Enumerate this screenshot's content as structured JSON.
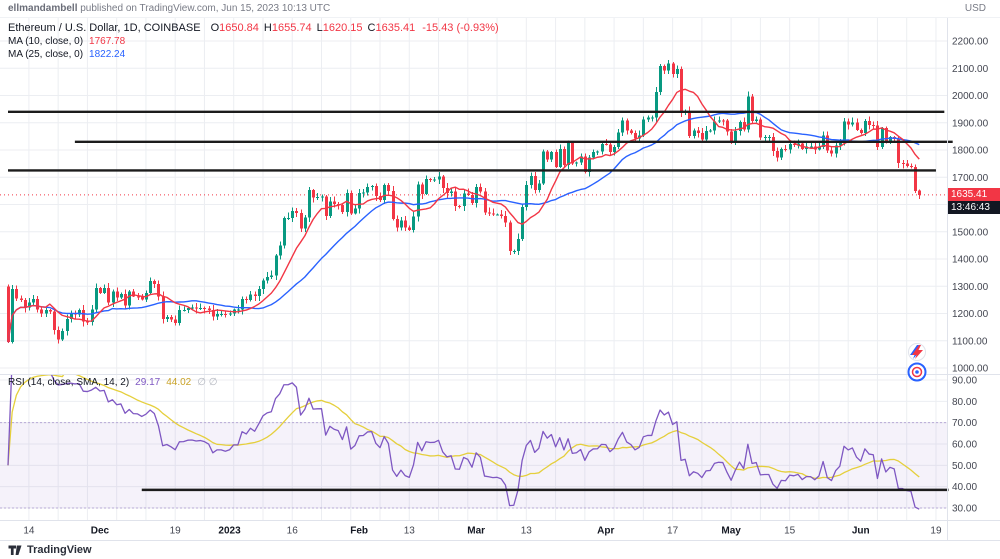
{
  "header": {
    "username": "ellmandambell",
    "publish_rest": " published on TradingView.com, Jun 15, 2023 10:13 UTC",
    "currency": "USD"
  },
  "legend": {
    "symbol": "Ethereum / U.S. Dollar, 1D, COINBASE",
    "ohlc": {
      "o_label": "O",
      "o": "1650.84",
      "h_label": "H",
      "h": "1655.74",
      "l_label": "L",
      "l": "1620.15",
      "c_label": "C",
      "c": "1635.41",
      "change": "-15.43 (-0.93%)"
    },
    "ma10": {
      "label": "MA (10, close, 0)",
      "value": "1767.78"
    },
    "ma25": {
      "label": "MA (25, close, 0)",
      "value": "1822.24"
    }
  },
  "rsi_legend": {
    "label": "RSI (14, close, SMA, 14, 2)",
    "rsi_value": "29.17",
    "ma_value": "44.02",
    "extra": "∅ ∅"
  },
  "badges": {
    "price": "1635.41",
    "countdown": "13:46:43"
  },
  "footer": {
    "brand": "TradingView"
  },
  "chart_data": {
    "type": "candlestick",
    "symbol": "ETHUSD",
    "exchange": "COINBASE",
    "interval": "1D",
    "first_open": 1300,
    "closes": [
      1095,
      1290,
      1255,
      1250,
      1222,
      1240,
      1253,
      1215,
      1200,
      1213,
      1208,
      1140,
      1105,
      1135,
      1180,
      1202,
      1197,
      1212,
      1170,
      1168,
      1214,
      1294,
      1276,
      1294,
      1240,
      1281,
      1258,
      1271,
      1230,
      1281,
      1263,
      1262,
      1252,
      1275,
      1320,
      1308,
      1263,
      1180,
      1188,
      1178,
      1166,
      1212,
      1213,
      1221,
      1222,
      1219,
      1221,
      1218,
      1212,
      1189,
      1199,
      1199,
      1196,
      1200,
      1214,
      1214,
      1254,
      1250,
      1269,
      1264,
      1289,
      1321,
      1334,
      1339,
      1413,
      1450,
      1551,
      1551,
      1577,
      1569,
      1512,
      1552,
      1654,
      1625,
      1628,
      1629,
      1557,
      1611,
      1602,
      1598,
      1572,
      1643,
      1567,
      1586,
      1642,
      1644,
      1665,
      1667,
      1631,
      1617,
      1672,
      1650,
      1546,
      1515,
      1541,
      1515,
      1507,
      1556,
      1674,
      1638,
      1694,
      1691,
      1692,
      1703,
      1661,
      1642,
      1647,
      1595,
      1594,
      1641,
      1634,
      1605,
      1664,
      1648,
      1570,
      1567,
      1563,
      1564,
      1558,
      1534,
      1429,
      1430,
      1474,
      1590,
      1672,
      1704,
      1653,
      1677,
      1794,
      1765,
      1792,
      1738,
      1803,
      1745,
      1827,
      1750,
      1754,
      1776,
      1719,
      1773,
      1793,
      1794,
      1822,
      1821,
      1792,
      1811,
      1865,
      1908,
      1872,
      1862,
      1842,
      1854,
      1912,
      1920,
      1920,
      2012,
      2108,
      2092,
      2118,
      2078,
      2098,
      1938,
      1944,
      1851,
      1872,
      1863,
      1839,
      1870,
      1872,
      1904,
      1909,
      1908,
      1868,
      1831,
      1869,
      1903,
      1876,
      1997,
      1907,
      1912,
      1846,
      1848,
      1848,
      1796,
      1772,
      1803,
      1801,
      1822,
      1819,
      1824,
      1803,
      1812,
      1812,
      1801,
      1811,
      1853,
      1799,
      1788,
      1817,
      1831,
      1904,
      1893,
      1901,
      1874,
      1862,
      1906,
      1891,
      1889,
      1811,
      1881,
      1829,
      1847,
      1841,
      1752,
      1751,
      1741,
      1738,
      1650,
      1635.41
    ],
    "last": {
      "o": 1650.84,
      "h": 1655.74,
      "l": 1620.15,
      "c": 1635.41,
      "change": -15.43,
      "change_pct": -0.93
    },
    "series": {
      "ma10": {
        "period": 10,
        "source": "close",
        "last": 1767.78
      },
      "ma25": {
        "period": 25,
        "source": "close",
        "last": 1822.24
      }
    },
    "indicator": {
      "name": "RSI",
      "length": 14,
      "smoothing": "SMA 14",
      "last_rsi": 29.17,
      "last_ma": 44.02,
      "upper_band": 70,
      "lower_band": 30,
      "trendline": {
        "value": 38.5,
        "i1": 32,
        "i2": 225
      }
    },
    "trendlines": [
      {
        "price": 1940,
        "i1": 0,
        "i2": 224
      },
      {
        "price": 1830,
        "i1": 16,
        "i2": 226
      },
      {
        "price": 1725,
        "i1": 0,
        "i2": 222
      }
    ],
    "price_line": 1635.41,
    "y_axis": {
      "min": 1000,
      "max": 2200,
      "step": 100,
      "side": "right"
    },
    "rsi_axis": {
      "min": 30,
      "max": 90,
      "step": 10
    },
    "weekly_grid": {
      "start": 5,
      "step": 7,
      "end": 222
    },
    "x_ticks": [
      {
        "label": "14",
        "i": 5,
        "major": false
      },
      {
        "label": "Dec",
        "i": 22,
        "major": true
      },
      {
        "label": "19",
        "i": 40,
        "major": false
      },
      {
        "label": "2023",
        "i": 53,
        "major": true
      },
      {
        "label": "16",
        "i": 68,
        "major": false
      },
      {
        "label": "Feb",
        "i": 84,
        "major": true
      },
      {
        "label": "13",
        "i": 96,
        "major": false
      },
      {
        "label": "Mar",
        "i": 112,
        "major": true
      },
      {
        "label": "13",
        "i": 124,
        "major": false
      },
      {
        "label": "Apr",
        "i": 143,
        "major": true
      },
      {
        "label": "17",
        "i": 159,
        "major": false
      },
      {
        "label": "May",
        "i": 173,
        "major": true
      },
      {
        "label": "15",
        "i": 187,
        "major": false
      },
      {
        "label": "Jun",
        "i": 204,
        "major": true
      },
      {
        "label": "19",
        "i": 222,
        "major": false
      }
    ],
    "colors": {
      "up": "#089981",
      "down": "#f23645",
      "ma10": "#f23645",
      "ma25": "#2962ff",
      "rsi": "#7e57c2",
      "rsi_ma": "#e5cf3c",
      "band": "rgba(126,87,194,0.08)",
      "band_edge": "#b7a9d6",
      "trend": "#1c1c1c",
      "grid": "#eceef2",
      "axis_text": "#434651",
      "price_line": "#f23645"
    }
  }
}
